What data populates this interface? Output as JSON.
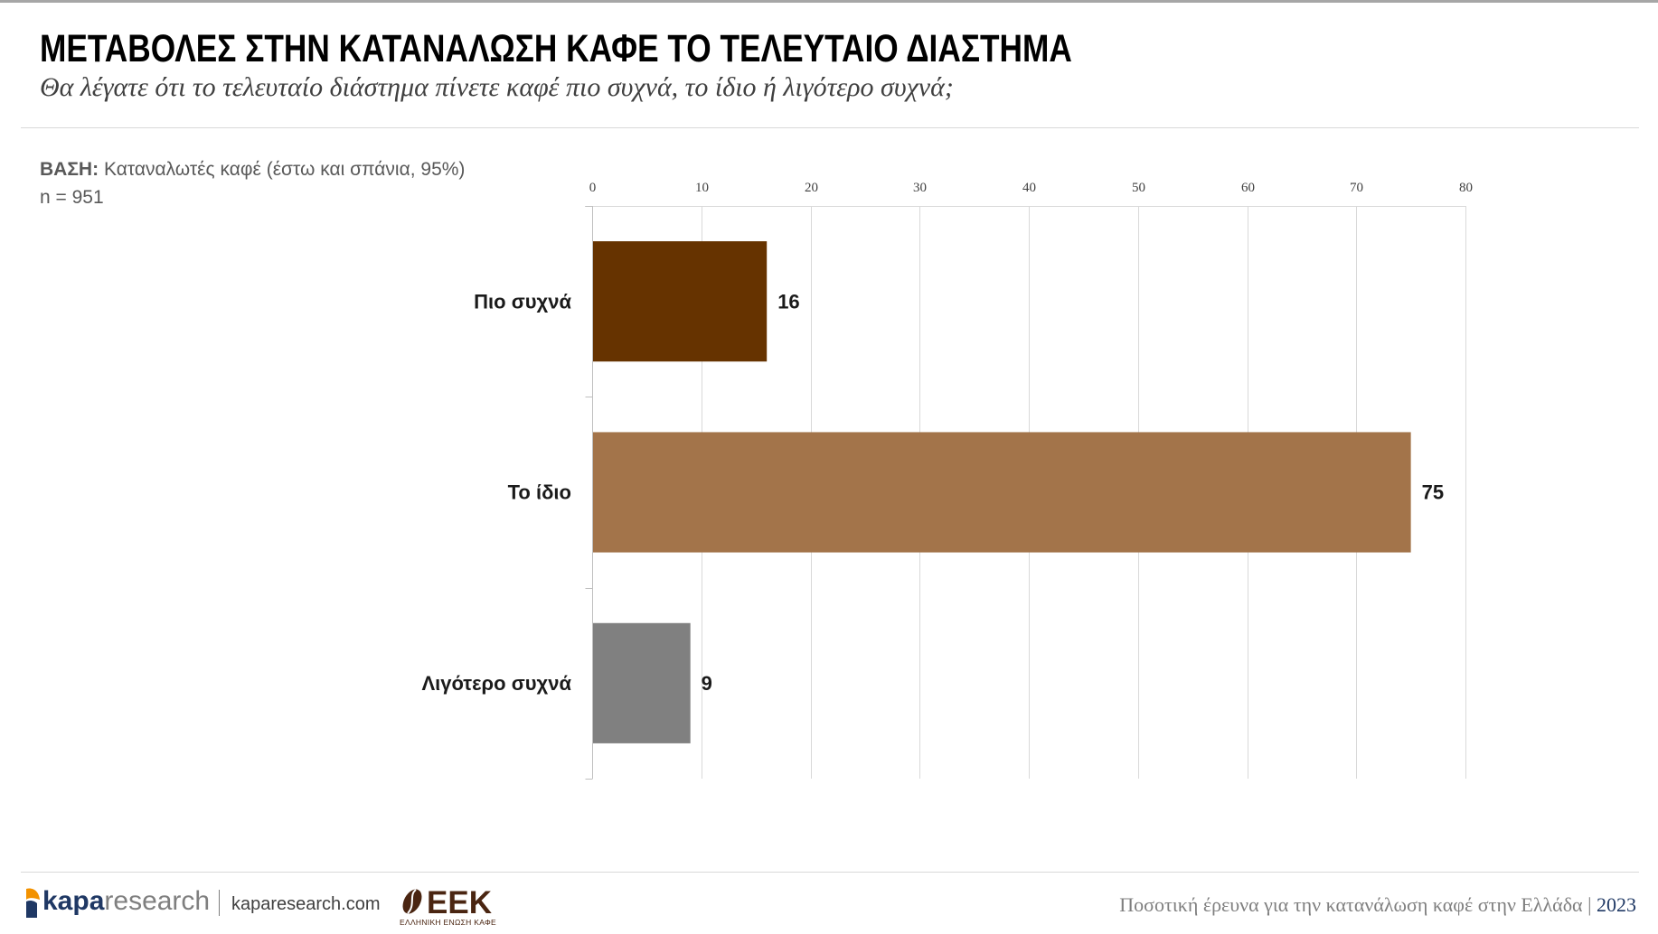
{
  "slide": {
    "title": "ΜΕΤΑΒΟΛΕΣ ΣΤΗΝ ΚΑΤΑΝΑΛΩΣΗ ΚΑΦΕ ΤΟ ΤΕΛΕΥΤΑΙΟ ΔΙΑΣΤΗΜΑ",
    "question": "Θα λέγατε ότι το τελευταίο διάστημα πίνετε καφέ πιο συχνά, το ίδιο ή λιγότερο συχνά;"
  },
  "base": {
    "label": "ΒΑΣΗ:",
    "description": "Καταναλωτές καφέ (έστω και σπάνια, 95%)",
    "sample_size": "n = 951"
  },
  "chart_data": {
    "type": "bar",
    "orientation": "horizontal",
    "categories": [
      "Πιο συχνά",
      "Το ίδιο",
      "Λιγότερο συχνά"
    ],
    "values": [
      16,
      75,
      9
    ],
    "colors": [
      "#663300",
      "#A3744A",
      "#808080"
    ],
    "xlim": [
      0,
      80
    ],
    "xticks": [
      0,
      10,
      20,
      30,
      40,
      50,
      60,
      70,
      80
    ],
    "x_axis_position": "top",
    "grid": true
  },
  "footer": {
    "kapa_logo": {
      "icon": "kapa-logo-mark",
      "wordmark_bold": "kapa",
      "wordmark_light": "research"
    },
    "website": "kaparesearch.com",
    "eek_logo": {
      "icon": "coffee-bean-icon",
      "letters": "ΕΕΚ",
      "tagline": "ΕΛΛΗΝΙΚΗ ΕΝΩΣΗ ΚΑΦΕ"
    },
    "survey_caption": "Ποσοτική έρευνα για την κατανάλωση καφέ στην Ελλάδα",
    "caption_separator": "|",
    "year": "2023"
  },
  "colors": {
    "title": "#000000",
    "question": "#404040",
    "base_text": "#595959",
    "gridline": "#d9d9d9",
    "axis": "#bfbfbf",
    "kapa_navy": "#1F3864",
    "kapa_orange": "#F39200",
    "kapa_gray": "#7f7f7f",
    "eek_brown": "#4A2511",
    "caption": "#7f7f7f",
    "year": "#1F3864"
  }
}
